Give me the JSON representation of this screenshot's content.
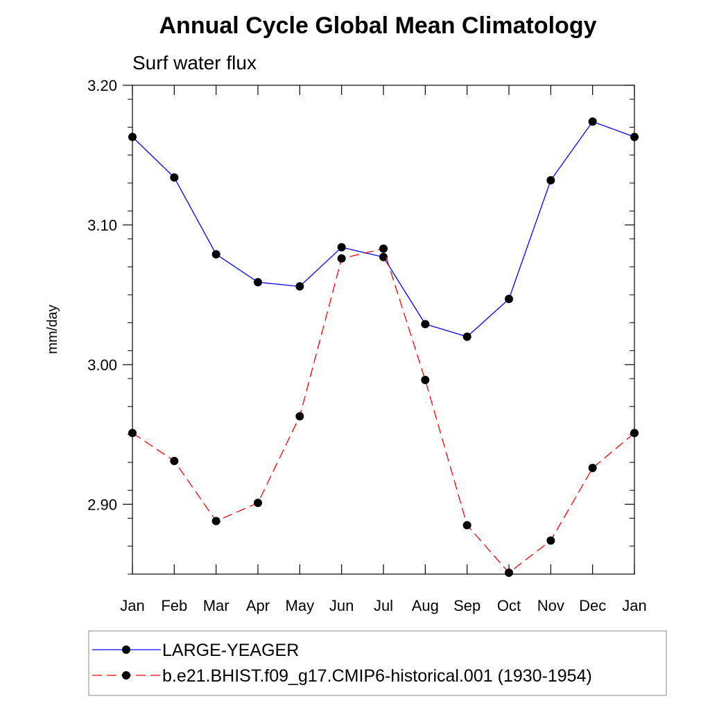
{
  "chart_data": {
    "type": "line",
    "title": "Annual Cycle Global Mean Climatology",
    "subtitle": "Surf water flux",
    "xlabel": "",
    "ylabel": "mm/day",
    "categories": [
      "Jan",
      "Feb",
      "Mar",
      "Apr",
      "May",
      "Jun",
      "Jul",
      "Aug",
      "Sep",
      "Oct",
      "Nov",
      "Dec",
      "Jan"
    ],
    "ylim": [
      2.85,
      3.2
    ],
    "yticks": [
      2.9,
      3.0,
      3.1,
      3.2
    ],
    "ytick_labels": [
      "2.90",
      "3.00",
      "3.10",
      "3.20"
    ],
    "grid": false,
    "legend_position": "bottom",
    "series": [
      {
        "name": "LARGE-YEAGER",
        "color": "#0000ff",
        "dash": "solid",
        "marker": "circle",
        "values": [
          3.163,
          3.134,
          3.079,
          3.059,
          3.056,
          3.084,
          3.077,
          3.029,
          3.02,
          3.047,
          3.132,
          3.174,
          3.163
        ]
      },
      {
        "name": "b.e21.BHIST.f09_g17.CMIP6-historical.001 (1930-1954)",
        "color": "#ff0000",
        "dash": "dashed",
        "marker": "circle",
        "values": [
          2.951,
          2.931,
          2.888,
          2.901,
          2.963,
          3.076,
          3.083,
          2.989,
          2.885,
          2.851,
          2.874,
          2.926,
          2.951
        ]
      }
    ]
  }
}
